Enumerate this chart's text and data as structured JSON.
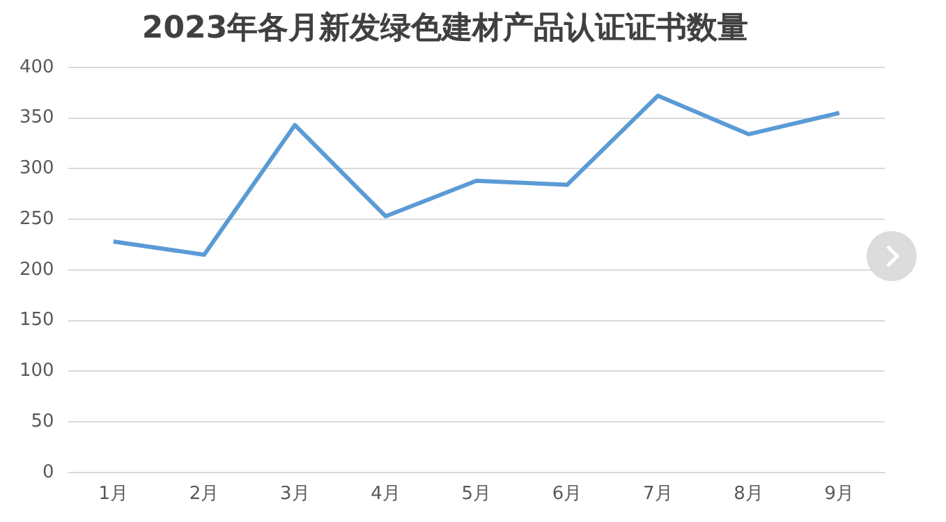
{
  "chart_data": {
    "type": "line",
    "title": "2023年各月新发绿色建材产品认证证书数量",
    "categories": [
      "1月",
      "2月",
      "3月",
      "4月",
      "5月",
      "6月",
      "7月",
      "8月",
      "9月"
    ],
    "series": [
      {
        "color": "#5b9bd5",
        "values": [
          228,
          215,
          343,
          253,
          288,
          284,
          372,
          334,
          355
        ]
      }
    ],
    "ylim": [
      0,
      400
    ],
    "yticks": [
      0,
      50,
      100,
      150,
      200,
      250,
      300,
      350,
      400
    ],
    "grid": "y",
    "legend": false,
    "marker": "none",
    "line_style": "solid"
  }
}
